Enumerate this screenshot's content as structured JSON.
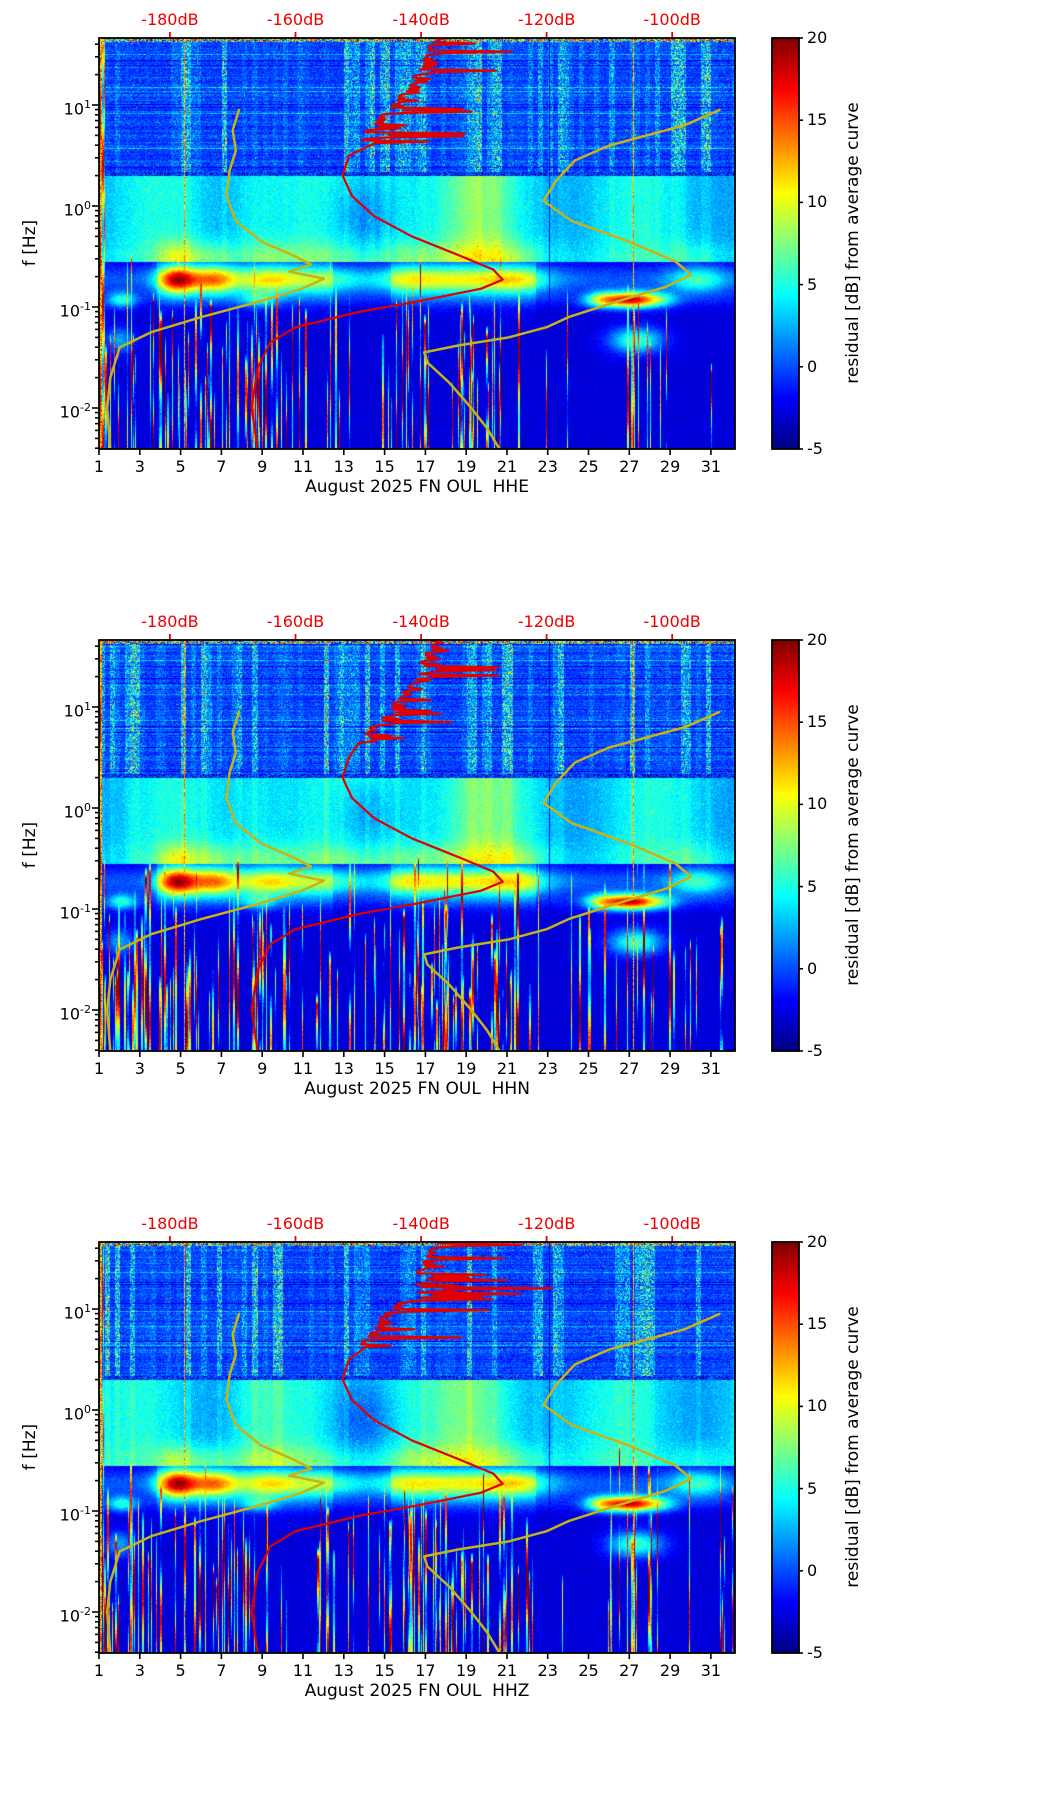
{
  "palette": {
    "background": "#ffffff",
    "frame": "#000000",
    "top_axis_color": "#ee0000",
    "curve_red": "#e00000",
    "curve_yellow": "#c8b216",
    "colormap": "jet"
  },
  "chart_data": [
    {
      "type": "heatmap",
      "subtype": "spectrogram-residual",
      "xlabel": "August 2025 FN OUL  HHE",
      "ylabel": "f [Hz]",
      "y_scale": "log",
      "y_ticks": [
        {
          "mantissa": "10",
          "exp": "1",
          "logf": 1
        },
        {
          "mantissa": "10",
          "exp": "0",
          "logf": 0
        },
        {
          "mantissa": "10",
          "exp": "-1",
          "logf": -1
        },
        {
          "mantissa": "10",
          "exp": "-2",
          "logf": -2
        }
      ],
      "y_range_logf": [
        -2.406,
        1.663
      ],
      "x_ticks_days": [
        1,
        3,
        5,
        7,
        9,
        11,
        13,
        15,
        17,
        19,
        21,
        23,
        25,
        27,
        29,
        31
      ],
      "x_range_days": [
        1,
        32.18
      ],
      "top_axis_db_ticks": [
        {
          "label": "-180dB",
          "db": -180
        },
        {
          "label": "-160dB",
          "db": -160
        },
        {
          "label": "-140dB",
          "db": -140
        },
        {
          "label": "-120dB",
          "db": -120
        },
        {
          "label": "-100dB",
          "db": -100
        }
      ],
      "top_axis_range_db": [
        -191.3,
        -90.0
      ],
      "colorbar": {
        "label": "residual [dB] from average curve",
        "ticks": [
          20,
          15,
          10,
          5,
          0,
          -5
        ],
        "vmin": -5,
        "vmax": 20
      },
      "seed": 11,
      "curves": {
        "average_red": [
          [
            1.663,
            -138
          ],
          [
            1.45,
            -140
          ],
          [
            1.2,
            -142
          ],
          [
            0.95,
            -146
          ],
          [
            0.7,
            -149.5
          ],
          [
            0.5,
            -151.5
          ],
          [
            0.3,
            -152.5
          ],
          [
            0.1,
            -151
          ],
          [
            -0.1,
            -147.5
          ],
          [
            -0.3,
            -141.5
          ],
          [
            -0.5,
            -133.5
          ],
          [
            -0.63,
            -128.5
          ],
          [
            -0.73,
            -127
          ],
          [
            -0.82,
            -130.5
          ],
          [
            -0.95,
            -141
          ],
          [
            -1.05,
            -150
          ],
          [
            -1.2,
            -160
          ],
          [
            -1.35,
            -164
          ],
          [
            -1.6,
            -166
          ],
          [
            -2.0,
            -167
          ],
          [
            -2.406,
            -166
          ]
        ],
        "yellow_low": [
          [
            0.95,
            -169
          ],
          [
            0.75,
            -170
          ],
          [
            0.55,
            -169.5
          ],
          [
            0.35,
            -170.5
          ],
          [
            0.1,
            -171
          ],
          [
            -0.15,
            -169.5
          ],
          [
            -0.35,
            -165.5
          ],
          [
            -0.5,
            -160
          ],
          [
            -0.58,
            -157.5
          ],
          [
            -0.65,
            -161
          ],
          [
            -0.72,
            -155.5
          ],
          [
            -0.82,
            -159
          ],
          [
            -0.95,
            -166
          ],
          [
            -1.1,
            -175
          ],
          [
            -1.25,
            -183
          ],
          [
            -1.4,
            -188
          ],
          [
            -1.7,
            -189.5
          ],
          [
            -2.0,
            -190
          ],
          [
            -2.406,
            -189.5
          ]
        ],
        "yellow_high": [
          [
            0.95,
            -92.5
          ],
          [
            0.8,
            -98
          ],
          [
            0.6,
            -110
          ],
          [
            0.45,
            -115.5
          ],
          [
            0.25,
            -118.5
          ],
          [
            0.05,
            -120.5
          ],
          [
            -0.15,
            -116
          ],
          [
            -0.35,
            -107
          ],
          [
            -0.55,
            -99.5
          ],
          [
            -0.68,
            -97
          ],
          [
            -0.8,
            -101
          ],
          [
            -0.95,
            -109
          ],
          [
            -1.1,
            -116.5
          ],
          [
            -1.2,
            -120
          ],
          [
            -1.3,
            -126
          ],
          [
            -1.38,
            -134
          ],
          [
            -1.45,
            -139.5
          ],
          [
            -1.55,
            -139
          ],
          [
            -1.75,
            -135.5
          ],
          [
            -2.0,
            -132
          ],
          [
            -2.2,
            -129.5
          ],
          [
            -2.406,
            -127.5
          ]
        ]
      }
    },
    {
      "type": "heatmap",
      "subtype": "spectrogram-residual",
      "xlabel": "August 2025 FN OUL  HHN",
      "ylabel": "f [Hz]",
      "y_scale": "log",
      "y_ticks": [
        {
          "mantissa": "10",
          "exp": "1",
          "logf": 1
        },
        {
          "mantissa": "10",
          "exp": "0",
          "logf": 0
        },
        {
          "mantissa": "10",
          "exp": "-1",
          "logf": -1
        },
        {
          "mantissa": "10",
          "exp": "-2",
          "logf": -2
        }
      ],
      "y_range_logf": [
        -2.406,
        1.663
      ],
      "x_ticks_days": [
        1,
        3,
        5,
        7,
        9,
        11,
        13,
        15,
        17,
        19,
        21,
        23,
        25,
        27,
        29,
        31
      ],
      "x_range_days": [
        1,
        32.18
      ],
      "top_axis_db_ticks": [
        {
          "label": "-180dB",
          "db": -180
        },
        {
          "label": "-160dB",
          "db": -160
        },
        {
          "label": "-140dB",
          "db": -140
        },
        {
          "label": "-120dB",
          "db": -120
        },
        {
          "label": "-100dB",
          "db": -100
        }
      ],
      "top_axis_range_db": [
        -191.3,
        -90.0
      ],
      "colorbar": {
        "label": "residual [dB] from average curve",
        "ticks": [
          20,
          15,
          10,
          5,
          0,
          -5
        ],
        "vmin": -5,
        "vmax": 20
      },
      "seed": 23,
      "curves": {
        "average_red": [
          [
            1.663,
            -138
          ],
          [
            1.45,
            -140
          ],
          [
            1.2,
            -142
          ],
          [
            0.95,
            -146
          ],
          [
            0.7,
            -149.5
          ],
          [
            0.5,
            -151.5
          ],
          [
            0.3,
            -152.5
          ],
          [
            0.1,
            -151
          ],
          [
            -0.1,
            -147.5
          ],
          [
            -0.3,
            -141.5
          ],
          [
            -0.5,
            -133.5
          ],
          [
            -0.63,
            -128.5
          ],
          [
            -0.73,
            -127
          ],
          [
            -0.82,
            -130.5
          ],
          [
            -0.95,
            -141
          ],
          [
            -1.05,
            -150
          ],
          [
            -1.2,
            -160
          ],
          [
            -1.35,
            -164
          ],
          [
            -1.6,
            -166
          ],
          [
            -2.0,
            -167
          ],
          [
            -2.406,
            -166
          ]
        ],
        "yellow_low": [
          [
            0.95,
            -169
          ],
          [
            0.75,
            -170
          ],
          [
            0.55,
            -169.5
          ],
          [
            0.35,
            -170.5
          ],
          [
            0.1,
            -171
          ],
          [
            -0.15,
            -169.5
          ],
          [
            -0.35,
            -165.5
          ],
          [
            -0.5,
            -160
          ],
          [
            -0.58,
            -157.5
          ],
          [
            -0.65,
            -161
          ],
          [
            -0.72,
            -155.5
          ],
          [
            -0.82,
            -159
          ],
          [
            -0.95,
            -166
          ],
          [
            -1.1,
            -175
          ],
          [
            -1.25,
            -183
          ],
          [
            -1.4,
            -188
          ],
          [
            -1.7,
            -189.5
          ],
          [
            -2.0,
            -190
          ],
          [
            -2.406,
            -189.5
          ]
        ],
        "yellow_high": [
          [
            0.95,
            -92.5
          ],
          [
            0.8,
            -98
          ],
          [
            0.6,
            -110
          ],
          [
            0.45,
            -115.5
          ],
          [
            0.25,
            -118.5
          ],
          [
            0.05,
            -120.5
          ],
          [
            -0.15,
            -116
          ],
          [
            -0.35,
            -107
          ],
          [
            -0.55,
            -99.5
          ],
          [
            -0.68,
            -97
          ],
          [
            -0.8,
            -101
          ],
          [
            -0.95,
            -109
          ],
          [
            -1.1,
            -116.5
          ],
          [
            -1.2,
            -120
          ],
          [
            -1.3,
            -126
          ],
          [
            -1.38,
            -134
          ],
          [
            -1.45,
            -139.5
          ],
          [
            -1.55,
            -139
          ],
          [
            -1.75,
            -135.5
          ],
          [
            -2.0,
            -132
          ],
          [
            -2.2,
            -129.5
          ],
          [
            -2.406,
            -127.5
          ]
        ]
      }
    },
    {
      "type": "heatmap",
      "subtype": "spectrogram-residual",
      "xlabel": "August 2025 FN OUL  HHZ",
      "ylabel": "f [Hz]",
      "y_scale": "log",
      "y_ticks": [
        {
          "mantissa": "10",
          "exp": "1",
          "logf": 1
        },
        {
          "mantissa": "10",
          "exp": "0",
          "logf": 0
        },
        {
          "mantissa": "10",
          "exp": "-1",
          "logf": -1
        },
        {
          "mantissa": "10",
          "exp": "-2",
          "logf": -2
        }
      ],
      "y_range_logf": [
        -2.406,
        1.663
      ],
      "x_ticks_days": [
        1,
        3,
        5,
        7,
        9,
        11,
        13,
        15,
        17,
        19,
        21,
        23,
        25,
        27,
        29,
        31
      ],
      "x_range_days": [
        1,
        32.18
      ],
      "top_axis_db_ticks": [
        {
          "label": "-180dB",
          "db": -180
        },
        {
          "label": "-160dB",
          "db": -160
        },
        {
          "label": "-140dB",
          "db": -140
        },
        {
          "label": "-120dB",
          "db": -120
        },
        {
          "label": "-100dB",
          "db": -100
        }
      ],
      "top_axis_range_db": [
        -191.3,
        -90.0
      ],
      "colorbar": {
        "label": "residual [dB] from average curve",
        "ticks": [
          20,
          15,
          10,
          5,
          0,
          -5
        ],
        "vmin": -5,
        "vmax": 20
      },
      "seed": 37,
      "curves": {
        "average_red": [
          [
            1.663,
            -138
          ],
          [
            1.45,
            -140
          ],
          [
            1.2,
            -142
          ],
          [
            0.95,
            -146
          ],
          [
            0.7,
            -149.5
          ],
          [
            0.5,
            -151.5
          ],
          [
            0.3,
            -152.5
          ],
          [
            0.1,
            -151
          ],
          [
            -0.1,
            -147.5
          ],
          [
            -0.3,
            -141.5
          ],
          [
            -0.5,
            -133.5
          ],
          [
            -0.63,
            -128.5
          ],
          [
            -0.73,
            -127
          ],
          [
            -0.82,
            -130.5
          ],
          [
            -0.95,
            -141
          ],
          [
            -1.05,
            -150
          ],
          [
            -1.2,
            -160
          ],
          [
            -1.35,
            -164
          ],
          [
            -1.6,
            -166
          ],
          [
            -2.0,
            -167
          ],
          [
            -2.406,
            -166
          ]
        ],
        "yellow_low": [
          [
            0.95,
            -169
          ],
          [
            0.75,
            -170
          ],
          [
            0.55,
            -169.5
          ],
          [
            0.35,
            -170.5
          ],
          [
            0.1,
            -171
          ],
          [
            -0.15,
            -169.5
          ],
          [
            -0.35,
            -165.5
          ],
          [
            -0.5,
            -160
          ],
          [
            -0.58,
            -157.5
          ],
          [
            -0.65,
            -161
          ],
          [
            -0.72,
            -155.5
          ],
          [
            -0.82,
            -159
          ],
          [
            -0.95,
            -166
          ],
          [
            -1.1,
            -175
          ],
          [
            -1.25,
            -183
          ],
          [
            -1.4,
            -188
          ],
          [
            -1.7,
            -189.5
          ],
          [
            -2.0,
            -190
          ],
          [
            -2.406,
            -189.5
          ]
        ],
        "yellow_high": [
          [
            0.95,
            -92.5
          ],
          [
            0.8,
            -98
          ],
          [
            0.6,
            -110
          ],
          [
            0.45,
            -115.5
          ],
          [
            0.25,
            -118.5
          ],
          [
            0.05,
            -120.5
          ],
          [
            -0.15,
            -116
          ],
          [
            -0.35,
            -107
          ],
          [
            -0.55,
            -99.5
          ],
          [
            -0.68,
            -97
          ],
          [
            -0.8,
            -101
          ],
          [
            -0.95,
            -109
          ],
          [
            -1.1,
            -116.5
          ],
          [
            -1.2,
            -120
          ],
          [
            -1.3,
            -126
          ],
          [
            -1.38,
            -134
          ],
          [
            -1.45,
            -139.5
          ],
          [
            -1.55,
            -139
          ],
          [
            -1.75,
            -135.5
          ],
          [
            -2.0,
            -132
          ],
          [
            -2.2,
            -129.5
          ],
          [
            -2.406,
            -127.5
          ]
        ]
      }
    }
  ]
}
